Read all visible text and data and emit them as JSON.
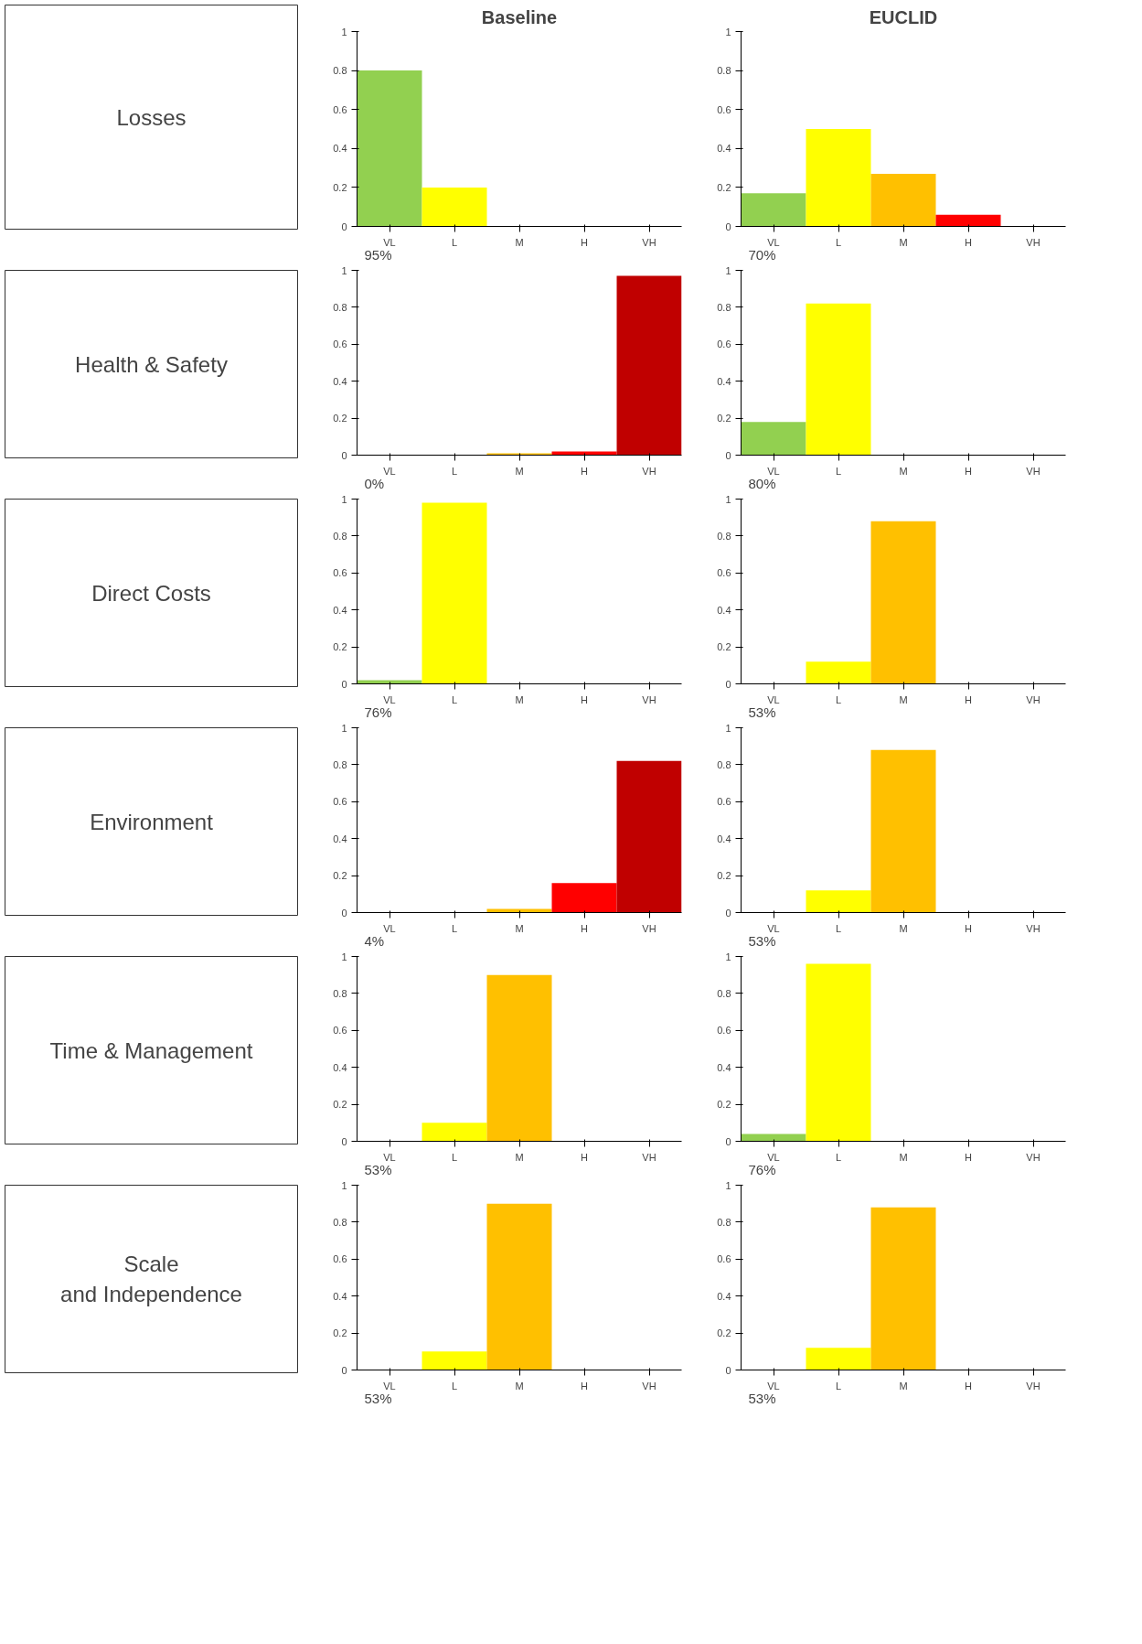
{
  "chart_data": [
    {
      "type": "bar",
      "title": "Baseline",
      "annotations": [
        "Losses",
        "95%"
      ],
      "categories": [
        "VL",
        "L",
        "M",
        "H",
        "VH"
      ],
      "values": [
        0.8,
        0.2,
        0,
        0,
        0
      ],
      "colors": [
        "#92d050",
        "#ffff00",
        "#ffc000",
        "#ff0000",
        "#c00000"
      ],
      "ylim": [
        0,
        1
      ],
      "yticks": [
        0,
        0.2,
        0.4,
        0.6,
        0.8,
        1
      ]
    },
    {
      "type": "bar",
      "title": "EUCLID",
      "annotations": [
        "70%"
      ],
      "categories": [
        "VL",
        "L",
        "M",
        "H",
        "VH"
      ],
      "values": [
        0.17,
        0.5,
        0.27,
        0.06,
        0
      ],
      "colors": [
        "#92d050",
        "#ffff00",
        "#ffc000",
        "#ff0000",
        "#c00000"
      ],
      "ylim": [
        0,
        1
      ],
      "yticks": [
        0,
        0.2,
        0.4,
        0.6,
        0.8,
        1
      ]
    },
    {
      "type": "bar",
      "annotations": [
        "Health & Safety",
        "0%"
      ],
      "categories": [
        "VL",
        "L",
        "M",
        "H",
        "VH"
      ],
      "values": [
        0,
        0,
        0.01,
        0.02,
        0.97
      ],
      "colors": [
        "#92d050",
        "#ffff00",
        "#ffc000",
        "#ff0000",
        "#c00000"
      ],
      "ylim": [
        0,
        1
      ],
      "yticks": [
        0,
        0.2,
        0.4,
        0.6,
        0.8,
        1
      ]
    },
    {
      "type": "bar",
      "annotations": [
        "80%"
      ],
      "categories": [
        "VL",
        "L",
        "M",
        "H",
        "VH"
      ],
      "values": [
        0.18,
        0.82,
        0,
        0,
        0
      ],
      "colors": [
        "#92d050",
        "#ffff00",
        "#ffc000",
        "#ff0000",
        "#c00000"
      ],
      "ylim": [
        0,
        1
      ],
      "yticks": [
        0,
        0.2,
        0.4,
        0.6,
        0.8,
        1
      ]
    },
    {
      "type": "bar",
      "annotations": [
        "Direct Costs",
        "76%"
      ],
      "categories": [
        "VL",
        "L",
        "M",
        "H",
        "VH"
      ],
      "values": [
        0.02,
        0.98,
        0,
        0,
        0
      ],
      "colors": [
        "#92d050",
        "#ffff00",
        "#ffc000",
        "#ff0000",
        "#c00000"
      ],
      "ylim": [
        0,
        1
      ],
      "yticks": [
        0,
        0.2,
        0.4,
        0.6,
        0.8,
        1
      ]
    },
    {
      "type": "bar",
      "annotations": [
        "53%"
      ],
      "categories": [
        "VL",
        "L",
        "M",
        "H",
        "VH"
      ],
      "values": [
        0,
        0.12,
        0.88,
        0,
        0
      ],
      "colors": [
        "#92d050",
        "#ffff00",
        "#ffc000",
        "#ff0000",
        "#c00000"
      ],
      "ylim": [
        0,
        1
      ],
      "yticks": [
        0,
        0.2,
        0.4,
        0.6,
        0.8,
        1
      ]
    },
    {
      "type": "bar",
      "annotations": [
        "Environment",
        "4%"
      ],
      "categories": [
        "VL",
        "L",
        "M",
        "H",
        "VH"
      ],
      "values": [
        0,
        0,
        0.02,
        0.16,
        0.82
      ],
      "colors": [
        "#92d050",
        "#ffff00",
        "#ffc000",
        "#ff0000",
        "#c00000"
      ],
      "ylim": [
        0,
        1
      ],
      "yticks": [
        0,
        0.2,
        0.4,
        0.6,
        0.8,
        1
      ]
    },
    {
      "type": "bar",
      "annotations": [
        "53%"
      ],
      "categories": [
        "VL",
        "L",
        "M",
        "H",
        "VH"
      ],
      "values": [
        0,
        0.12,
        0.88,
        0,
        0
      ],
      "colors": [
        "#92d050",
        "#ffff00",
        "#ffc000",
        "#ff0000",
        "#c00000"
      ],
      "ylim": [
        0,
        1
      ],
      "yticks": [
        0,
        0.2,
        0.4,
        0.6,
        0.8,
        1
      ]
    },
    {
      "type": "bar",
      "annotations": [
        "Time & Management",
        "53%"
      ],
      "categories": [
        "VL",
        "L",
        "M",
        "H",
        "VH"
      ],
      "values": [
        0,
        0.1,
        0.9,
        0,
        0
      ],
      "colors": [
        "#92d050",
        "#ffff00",
        "#ffc000",
        "#ff0000",
        "#c00000"
      ],
      "ylim": [
        0,
        1
      ],
      "yticks": [
        0,
        0.2,
        0.4,
        0.6,
        0.8,
        1
      ]
    },
    {
      "type": "bar",
      "annotations": [
        "76%"
      ],
      "categories": [
        "VL",
        "L",
        "M",
        "H",
        "VH"
      ],
      "values": [
        0.04,
        0.96,
        0,
        0,
        0
      ],
      "colors": [
        "#92d050",
        "#ffff00",
        "#ffc000",
        "#ff0000",
        "#c00000"
      ],
      "ylim": [
        0,
        1
      ],
      "yticks": [
        0,
        0.2,
        0.4,
        0.6,
        0.8,
        1
      ]
    },
    {
      "type": "bar",
      "annotations": [
        "Scale and Independence",
        "53%"
      ],
      "categories": [
        "VL",
        "L",
        "M",
        "H",
        "VH"
      ],
      "values": [
        0,
        0.1,
        0.9,
        0,
        0
      ],
      "colors": [
        "#92d050",
        "#ffff00",
        "#ffc000",
        "#ff0000",
        "#c00000"
      ],
      "ylim": [
        0,
        1
      ],
      "yticks": [
        0,
        0.2,
        0.4,
        0.6,
        0.8,
        1
      ]
    },
    {
      "type": "bar",
      "annotations": [
        "53%"
      ],
      "categories": [
        "VL",
        "L",
        "M",
        "H",
        "VH"
      ],
      "values": [
        0,
        0.12,
        0.88,
        0,
        0
      ],
      "colors": [
        "#92d050",
        "#ffff00",
        "#ffc000",
        "#ff0000",
        "#c00000"
      ],
      "ylim": [
        0,
        1
      ],
      "yticks": [
        0,
        0.2,
        0.4,
        0.6,
        0.8,
        1
      ]
    }
  ]
}
